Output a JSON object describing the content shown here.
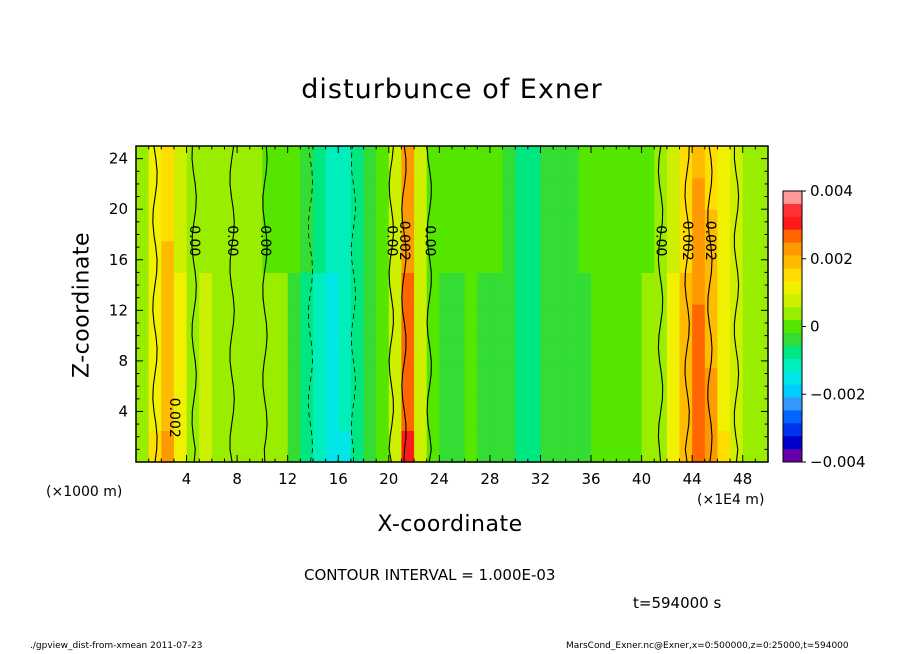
{
  "chart_data": {
    "type": "heatmap",
    "title": "disturbunce of Exner",
    "xlabel": "X-coordinate",
    "ylabel": "Z-coordinate",
    "x_unit_label": "(×1000 m)",
    "x_scale_label": "(×1E4 m)",
    "xlim": [
      0,
      50
    ],
    "ylim": [
      0,
      25
    ],
    "x_ticks": [
      4,
      8,
      12,
      16,
      20,
      24,
      28,
      32,
      36,
      40,
      44,
      48
    ],
    "y_ticks": [
      4,
      8,
      12,
      16,
      20,
      24
    ],
    "colorbar": {
      "ticks": [
        "0.004",
        "0.002",
        "0",
        "−0.002",
        "−0.004"
      ],
      "range": [
        -0.004,
        0.004
      ],
      "colors": [
        "#ff9999",
        "#ff3333",
        "#ff1a1a",
        "#ff6600",
        "#ff9900",
        "#ffbb00",
        "#ffdd00",
        "#f0f000",
        "#ccf000",
        "#99ee00",
        "#55e600",
        "#33dd33",
        "#00e680",
        "#00eebb",
        "#00e6e6",
        "#00ccff",
        "#3399ff",
        "#0066ff",
        "#0033ee",
        "#0000cc",
        "#6600aa"
      ]
    },
    "columns": [
      {
        "x": 0.5,
        "v": 0.0005
      },
      {
        "x": 1.5,
        "v": 0.0012
      },
      {
        "x": 2.5,
        "v": 0.0019
      },
      {
        "x": 3.5,
        "v": 0.001
      },
      {
        "x": 4.5,
        "v": 0.0005
      },
      {
        "x": 5.5,
        "v": 0.0006
      },
      {
        "x": 6.5,
        "v": 0.0005
      },
      {
        "x": 7.5,
        "v": 0.0004
      },
      {
        "x": 8.5,
        "v": 0.0005
      },
      {
        "x": 9.5,
        "v": 0.0003
      },
      {
        "x": 10.5,
        "v": 0.0002
      },
      {
        "x": 11.5,
        "v": 0.0002
      },
      {
        "x": 12.5,
        "v": -0.0002
      },
      {
        "x": 13.5,
        "v": -0.0006
      },
      {
        "x": 14.5,
        "v": -0.001
      },
      {
        "x": 15.5,
        "v": -0.0014
      },
      {
        "x": 16.5,
        "v": -0.0012
      },
      {
        "x": 17.5,
        "v": -0.0007
      },
      {
        "x": 18.5,
        "v": -0.0003
      },
      {
        "x": 19.5,
        "v": 0.0001
      },
      {
        "x": 20.5,
        "v": 0.0008
      },
      {
        "x": 21.5,
        "v": 0.0026
      },
      {
        "x": 22.5,
        "v": 0.0008
      },
      {
        "x": 23.5,
        "v": 0.0001
      },
      {
        "x": 24.5,
        "v": -0.0002
      },
      {
        "x": 25.5,
        "v": -0.0002
      },
      {
        "x": 26.5,
        "v": -0.0001
      },
      {
        "x": 27.5,
        "v": -0.0002
      },
      {
        "x": 28.5,
        "v": -0.0002
      },
      {
        "x": 29.5,
        "v": -0.0004
      },
      {
        "x": 30.5,
        "v": -0.0007
      },
      {
        "x": 31.5,
        "v": -0.0008
      },
      {
        "x": 32.5,
        "v": -0.0005
      },
      {
        "x": 33.5,
        "v": -0.0003
      },
      {
        "x": 34.5,
        "v": -0.0003
      },
      {
        "x": 35.5,
        "v": -0.0002
      },
      {
        "x": 36.5,
        "v": -0.0001
      },
      {
        "x": 37.5,
        "v": 0.0
      },
      {
        "x": 38.5,
        "v": 0.0
      },
      {
        "x": 39.5,
        "v": 0.0001
      },
      {
        "x": 40.5,
        "v": 0.0002
      },
      {
        "x": 41.5,
        "v": 0.0004
      },
      {
        "x": 42.5,
        "v": 0.001
      },
      {
        "x": 43.5,
        "v": 0.0018
      },
      {
        "x": 44.5,
        "v": 0.0025
      },
      {
        "x": 45.5,
        "v": 0.002
      },
      {
        "x": 46.5,
        "v": 0.0012
      },
      {
        "x": 47.5,
        "v": 0.0008
      },
      {
        "x": 48.5,
        "v": 0.0005
      },
      {
        "x": 49.5,
        "v": 0.0003
      }
    ],
    "contours": [
      {
        "x": 1.5,
        "label": "",
        "dashed": false
      },
      {
        "x": 4.6,
        "label": "0.00",
        "dashed": false
      },
      {
        "x": 7.6,
        "label": "0.00",
        "dashed": false
      },
      {
        "x": 10.2,
        "label": "0.00",
        "dashed": false
      },
      {
        "x": 13.8,
        "label": "",
        "dashed": true
      },
      {
        "x": 17.2,
        "label": "",
        "dashed": true
      },
      {
        "x": 20.2,
        "label": "0.00",
        "dashed": false
      },
      {
        "x": 21.2,
        "label": "0.002",
        "dashed": false
      },
      {
        "x": 23.2,
        "label": "0.00",
        "dashed": false
      },
      {
        "x": 41.5,
        "label": "0.00",
        "dashed": false
      },
      {
        "x": 43.6,
        "label": "0.002",
        "dashed": false
      },
      {
        "x": 45.4,
        "label": "0.002",
        "dashed": false
      },
      {
        "x": 47.5,
        "label": "",
        "dashed": false
      }
    ],
    "extra_labels": [
      {
        "x": 3.0,
        "y": 3.5,
        "text": "0.002"
      }
    ]
  },
  "contour_interval": "CONTOUR INTERVAL = 1.000E-03",
  "time_label": "t=594000 s",
  "footer_left": "./gpview_dist-from-xmean  2011-07-23",
  "footer_right": "MarsCond_Exner.nc@Exner,x=0:500000,z=0:25000,t=594000"
}
